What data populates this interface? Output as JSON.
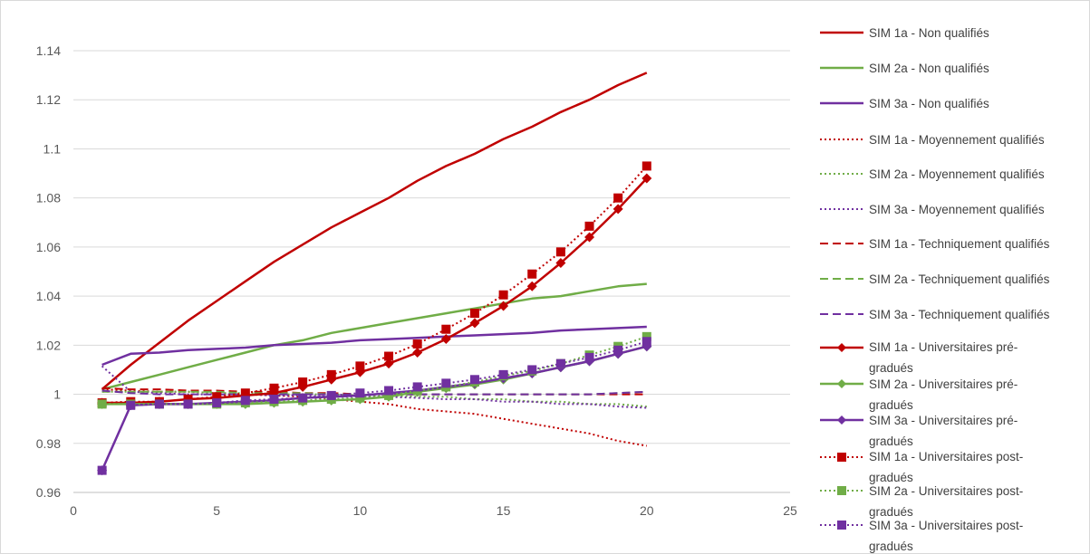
{
  "chart_data": {
    "type": "line",
    "title": "",
    "xlabel": "",
    "ylabel": "",
    "xlim": [
      0,
      25
    ],
    "ylim": [
      0.96,
      1.14
    ],
    "x_ticks": [
      "0",
      "5",
      "10",
      "15",
      "20",
      "25"
    ],
    "y_ticks": [
      "0.96",
      "0.98",
      "1",
      "1.02",
      "1.04",
      "1.06",
      "1.08",
      "1.1",
      "1.12",
      "1.14"
    ],
    "grid": "horizontal",
    "legend_position": "right",
    "x": [
      1,
      2,
      3,
      4,
      5,
      6,
      7,
      8,
      9,
      10,
      11,
      12,
      13,
      14,
      15,
      16,
      17,
      18,
      19,
      20
    ],
    "series": [
      {
        "name": "SIM 1a - Non qualifiés",
        "color": "#c00000",
        "dash": "solid",
        "marker": "none",
        "values": [
          1.002,
          1.012,
          1.021,
          1.03,
          1.038,
          1.046,
          1.054,
          1.061,
          1.068,
          1.074,
          1.08,
          1.087,
          1.093,
          1.098,
          1.104,
          1.109,
          1.115,
          1.12,
          1.126,
          1.131
        ]
      },
      {
        "name": "SIM 2a - Non qualifiés",
        "color": "#70ad47",
        "dash": "solid",
        "marker": "none",
        "values": [
          1.002,
          1.005,
          1.008,
          1.011,
          1.014,
          1.017,
          1.02,
          1.022,
          1.025,
          1.027,
          1.029,
          1.031,
          1.033,
          1.035,
          1.037,
          1.039,
          1.04,
          1.042,
          1.044,
          1.045
        ]
      },
      {
        "name": "SIM 3a - Non qualifiés",
        "color": "#7030a0",
        "dash": "solid",
        "marker": "none",
        "values": [
          1.012,
          1.0165,
          1.017,
          1.018,
          1.0185,
          1.019,
          1.02,
          1.0205,
          1.021,
          1.022,
          1.0225,
          1.023,
          1.0235,
          1.024,
          1.0245,
          1.025,
          1.026,
          1.0265,
          1.027,
          1.0275
        ]
      },
      {
        "name": "SIM 1a - Moyennement qualifiés",
        "color": "#c00000",
        "dash": "dot",
        "marker": "none",
        "values": [
          1.002,
          1.0015,
          1.001,
          1.001,
          1.0005,
          1.0,
          0.9995,
          0.999,
          0.998,
          0.997,
          0.996,
          0.994,
          0.993,
          0.992,
          0.99,
          0.988,
          0.986,
          0.984,
          0.981,
          0.979
        ]
      },
      {
        "name": "SIM 2a - Moyennement qualifiés",
        "color": "#70ad47",
        "dash": "dot",
        "marker": "none",
        "values": [
          1.001,
          1.001,
          1.001,
          1.001,
          1.0005,
          1.0005,
          1.0,
          1.0,
          1.0,
          0.9995,
          0.9995,
          0.999,
          0.999,
          0.998,
          0.998,
          0.997,
          0.997,
          0.996,
          0.996,
          0.995
        ]
      },
      {
        "name": "SIM 3a - Moyennement qualifiés",
        "color": "#7030a0",
        "dash": "dot",
        "marker": "none",
        "values": [
          1.0115,
          1.001,
          1.0005,
          1.0,
          1.0,
          1.0,
          0.9995,
          0.9995,
          0.999,
          0.999,
          0.999,
          0.9985,
          0.998,
          0.998,
          0.997,
          0.997,
          0.996,
          0.996,
          0.995,
          0.9945
        ]
      },
      {
        "name": "SIM 1a - Techniquement qualifiés",
        "color": "#c00000",
        "dash": "dash",
        "marker": "none",
        "values": [
          1.0025,
          1.002,
          1.002,
          1.0015,
          1.0015,
          1.001,
          1.001,
          1.0005,
          1.0005,
          1.0,
          1.0,
          1.0,
          1.0,
          1.0,
          1.0,
          1.0,
          1.0,
          1.0,
          1.0,
          1.0
        ]
      },
      {
        "name": "SIM 2a - Techniquement qualifiés",
        "color": "#70ad47",
        "dash": "dash",
        "marker": "none",
        "values": [
          1.001,
          1.001,
          1.001,
          1.001,
          1.001,
          1.0005,
          1.0005,
          1.0005,
          1.0,
          1.0,
          1.0,
          1.0,
          1.0,
          1.0,
          1.0,
          1.0,
          1.0,
          1.0,
          1.0005,
          1.001
        ]
      },
      {
        "name": "SIM 3a - Techniquement qualifiés",
        "color": "#7030a0",
        "dash": "dash",
        "marker": "none",
        "values": [
          1.0015,
          1.0005,
          1.0,
          1.0,
          1.0,
          1.0,
          1.0,
          1.0,
          1.0,
          1.0,
          1.0,
          1.0,
          1.0,
          1.0,
          1.0,
          1.0,
          1.0,
          1.0,
          1.0005,
          1.001
        ]
      },
      {
        "name": "SIM 1a - Universitaires pré-gradués",
        "color": "#c00000",
        "dash": "solid",
        "marker": "diamond",
        "values": [
          0.9965,
          0.9965,
          0.997,
          0.998,
          0.9985,
          0.9995,
          1.0005,
          1.003,
          1.006,
          1.009,
          1.0125,
          1.017,
          1.0225,
          1.029,
          1.036,
          1.044,
          1.0535,
          1.064,
          1.0755,
          1.088
        ]
      },
      {
        "name": "SIM 2a - Universitaires pré-gradués",
        "color": "#70ad47",
        "dash": "solid",
        "marker": "diamond",
        "values": [
          0.996,
          0.996,
          0.996,
          0.996,
          0.996,
          0.996,
          0.9965,
          0.997,
          0.9975,
          0.998,
          0.999,
          1.001,
          1.0025,
          1.004,
          1.006,
          1.0085,
          1.011,
          1.0135,
          1.0165,
          1.0195
        ]
      },
      {
        "name": "SIM 3a - Universitaires pré-gradués",
        "color": "#7030a0",
        "dash": "solid",
        "marker": "diamond",
        "values": [
          0.969,
          0.9955,
          0.996,
          0.996,
          0.9965,
          0.997,
          0.9975,
          0.9985,
          0.999,
          0.9995,
          1.0005,
          1.0015,
          1.003,
          1.0045,
          1.0065,
          1.0085,
          1.011,
          1.0135,
          1.0165,
          1.0195
        ]
      },
      {
        "name": "SIM 1a - Universitaires post-gradués",
        "color": "#c00000",
        "dash": "dot",
        "marker": "square",
        "values": [
          0.9965,
          0.997,
          0.997,
          0.998,
          0.999,
          1.0005,
          1.0025,
          1.005,
          1.008,
          1.0115,
          1.0155,
          1.0205,
          1.0265,
          1.033,
          1.0405,
          1.049,
          1.058,
          1.0685,
          1.08,
          1.093
        ]
      },
      {
        "name": "SIM 2a - Universitaires post-gradués",
        "color": "#70ad47",
        "dash": "dot",
        "marker": "square",
        "values": [
          0.996,
          0.996,
          0.996,
          0.996,
          0.996,
          0.9965,
          0.997,
          0.9975,
          0.998,
          0.9985,
          0.9995,
          1.0015,
          1.003,
          1.005,
          1.0075,
          1.0095,
          1.0125,
          1.016,
          1.0195,
          1.0235
        ]
      },
      {
        "name": "SIM 3a - Universitaires post-gradués",
        "color": "#7030a0",
        "dash": "dot",
        "marker": "square",
        "values": [
          0.969,
          0.9955,
          0.996,
          0.996,
          0.9965,
          0.9975,
          0.998,
          0.9985,
          0.9995,
          1.0005,
          1.0015,
          1.003,
          1.0045,
          1.006,
          1.008,
          1.01,
          1.0125,
          1.015,
          1.018,
          1.0215
        ]
      }
    ]
  }
}
